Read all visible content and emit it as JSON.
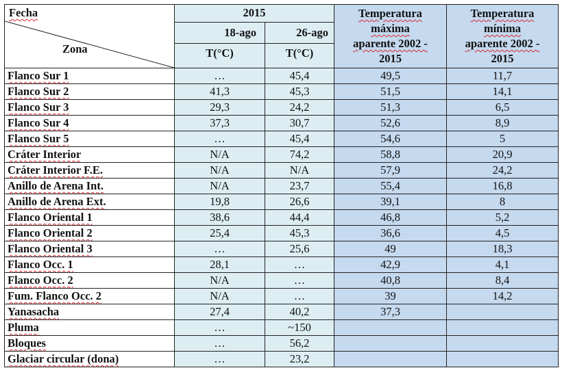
{
  "header": {
    "fecha": "Fecha",
    "zona": "Zona",
    "year": "2015",
    "date1": "18-ago",
    "date2": "26-ago",
    "unit1": "T(°C)",
    "unit2": "T(°C)",
    "tmax": [
      "Temperatura",
      "máxima",
      "aparente 2002 -",
      "2015"
    ],
    "tmin": [
      "Temperatura",
      "mínima",
      "aparente 2002 -",
      "2015"
    ]
  },
  "rows": [
    {
      "zona": "Flanco  Sur 1",
      "t1": "…",
      "t2": "45,4",
      "tmax": "49,5",
      "tmin": "11,7"
    },
    {
      "zona": "Flanco  Sur 2",
      "t1": "41,3",
      "t2": "45,3",
      "tmax": "51,5",
      "tmin": "14,1"
    },
    {
      "zona": "Flanco Sur 3",
      "t1": "29,3",
      "t2": "24,2",
      "tmax": "51,3",
      "tmin": "6,5"
    },
    {
      "zona": "Flanco Sur 4",
      "t1": "37,3",
      "t2": "30,7",
      "tmax": "52,6",
      "tmin": "8,9"
    },
    {
      "zona": "Flanco Sur 5",
      "t1": "…",
      "t2": "45,4",
      "tmax": "54,6",
      "tmin": "5"
    },
    {
      "zona": "Cráter Interior",
      "t1": "N/A",
      "t2": "74,2",
      "tmax": "58,8",
      "tmin": "20,9"
    },
    {
      "zona": "Cráter Interior F.E.",
      "t1": "N/A",
      "t2": "N/A",
      "tmax": "57,9",
      "tmin": "24,2"
    },
    {
      "zona": "Anillo de Arena Int.",
      "t1": "N/A",
      "t2": "23,7",
      "tmax": "55,4",
      "tmin": "16,8"
    },
    {
      "zona": "Anillo de Arena Ext.",
      "t1": "19,8",
      "t2": "26,6",
      "tmax": "39,1",
      "tmin": "8"
    },
    {
      "zona": "Flanco Oriental 1",
      "t1": "38,6",
      "t2": "44,4",
      "tmax": "46,8",
      "tmin": "5,2"
    },
    {
      "zona": "Flanco Oriental 2",
      "t1": "25,4",
      "t2": "45,3",
      "tmax": "36,6",
      "tmin": "4,5"
    },
    {
      "zona": "Flanco Oriental 3",
      "t1": "…",
      "t2": "25,6",
      "tmax": "49",
      "tmin": "18,3"
    },
    {
      "zona": "Flanco Occ. 1",
      "t1": "28,1",
      "t2": "…",
      "tmax": "42,9",
      "tmin": "4,1"
    },
    {
      "zona": "Flanco Occ. 2",
      "t1": "N/A",
      "t2": "…",
      "tmax": "40,8",
      "tmin": "8,4"
    },
    {
      "zona": "Fum. Flanco Occ. 2",
      "t1": "N/A",
      "t2": "…",
      "tmax": "39",
      "tmin": "14,2"
    },
    {
      "zona": "Yanasacha",
      "t1": "27,4",
      "t2": "40,2",
      "tmax": "37,3",
      "tmin": ""
    },
    {
      "zona": "Pluma",
      "t1": "…",
      "t2": "~150",
      "tmax": "",
      "tmin": ""
    },
    {
      "zona": "Bloques",
      "t1": "…",
      "t2": "56,2",
      "tmax": "",
      "tmin": ""
    },
    {
      "zona": "Glaciar circular (dona)",
      "t1": "…",
      "t2": "23,2",
      "tmax": "",
      "tmin": ""
    }
  ]
}
